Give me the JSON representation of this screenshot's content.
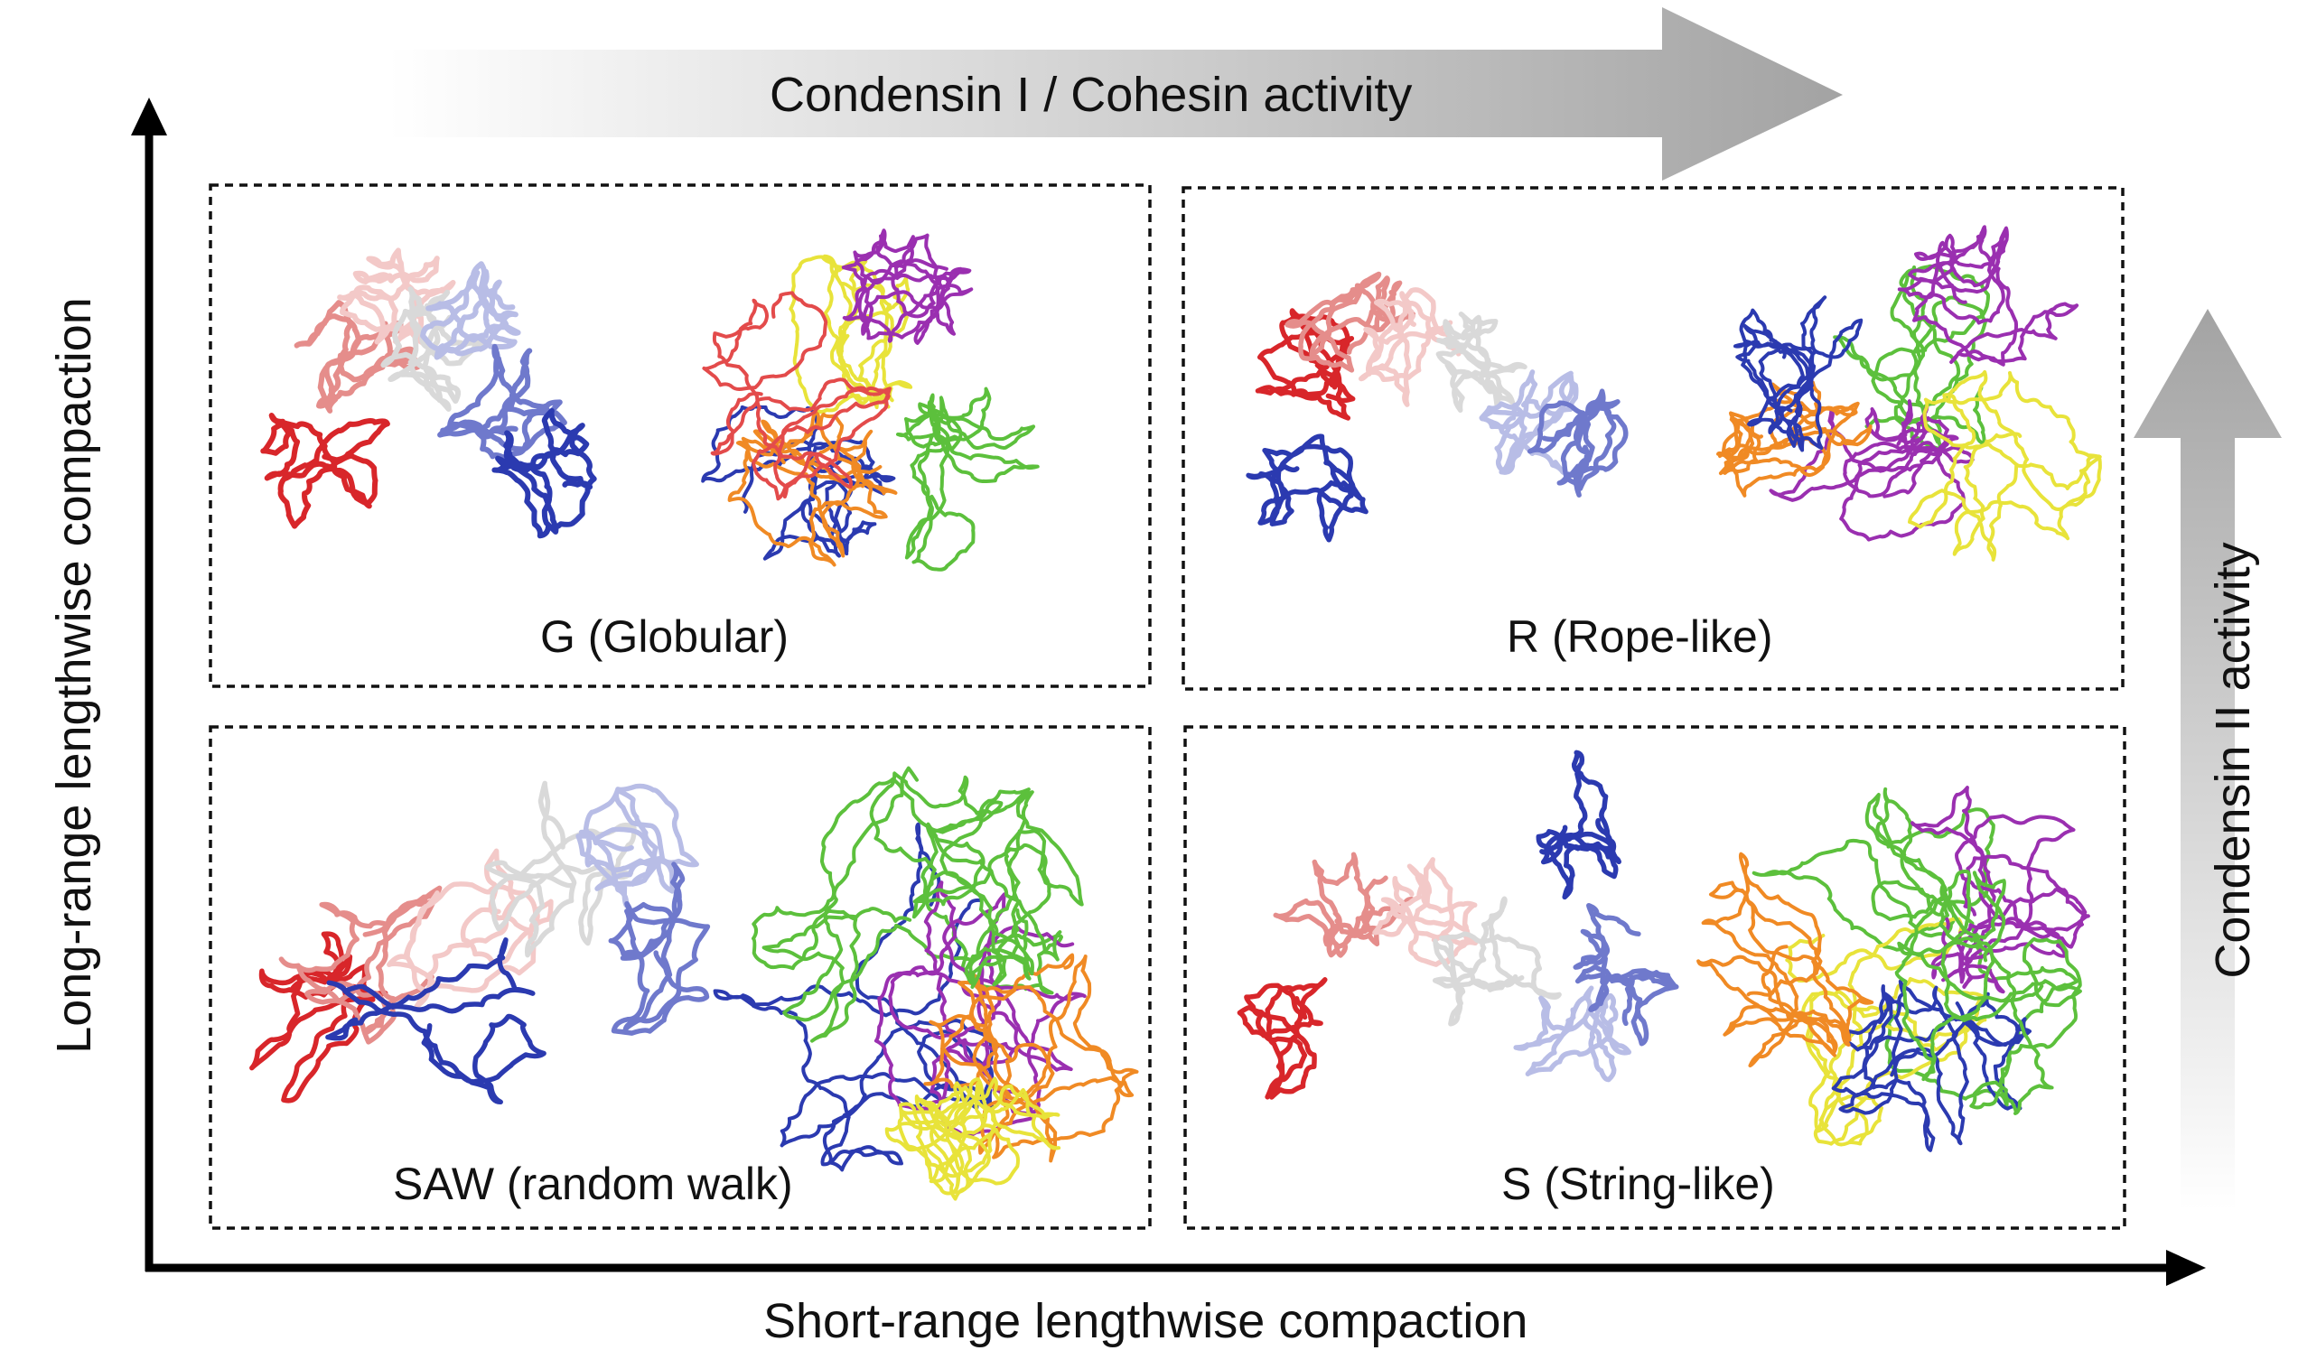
{
  "top_arrow": {
    "label": "Condensin I / Cohesin activity"
  },
  "right_arrow": {
    "label": "Condensin II activity"
  },
  "axes": {
    "x_label": "Short-range lengthwise compaction",
    "y_label": "Long-range lengthwise compaction"
  },
  "panels": [
    {
      "id": "G",
      "label": "G (Globular)",
      "position": "top-left"
    },
    {
      "id": "R",
      "label": "R (Rope-like)",
      "position": "top-right"
    },
    {
      "id": "SAW",
      "label": "SAW (random walk)",
      "position": "bottom-left"
    },
    {
      "id": "S",
      "label": "S (String-like)",
      "position": "bottom-right"
    }
  ],
  "colors": {
    "single_chain_gradient": [
      "#d8262a",
      "#e58d8b",
      "#f3c9c8",
      "#d9d9d9",
      "#b8bde6",
      "#6f79cc",
      "#2b3ab0"
    ],
    "multi_chain": [
      "#2b3ab0",
      "#e8e33a",
      "#5cc03c",
      "#9a2fb0",
      "#f08a24",
      "#e34b4b"
    ],
    "axis": "#000000",
    "arrow_gradient": [
      "#ffffff",
      "#a6a6a6"
    ]
  }
}
